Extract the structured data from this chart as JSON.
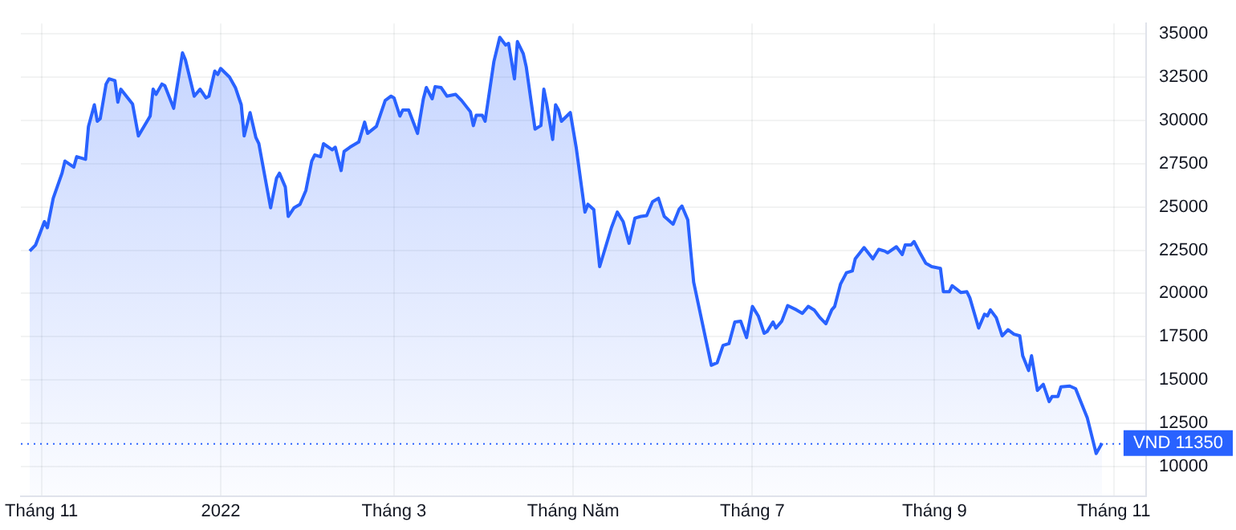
{
  "chart_data": {
    "type": "area",
    "color": "#2962ff",
    "grid": true,
    "legend": false,
    "marker": "none",
    "line_style": "solid",
    "xlim": [
      "2021-10-25",
      "2022-11-12"
    ],
    "xticks": [
      {
        "value": "2021-11-01",
        "label": "Tháng 11"
      },
      {
        "value": "2022-01-01",
        "label": "2022"
      },
      {
        "value": "2022-03-01",
        "label": "Tháng 3"
      },
      {
        "value": "2022-05-01",
        "label": "Tháng Năm"
      },
      {
        "value": "2022-07-01",
        "label": "Tháng 7"
      },
      {
        "value": "2022-09-01",
        "label": "Tháng 9"
      },
      {
        "value": "2022-11-01",
        "label": "Tháng 11"
      }
    ],
    "ylim": [
      8300,
      35600
    ],
    "yticks": [
      10000,
      12500,
      15000,
      17500,
      20000,
      22500,
      25000,
      27500,
      30000,
      32500,
      35000
    ],
    "ref_lines": [
      {
        "axis": "y",
        "value": 11350,
        "label": "VND 11350",
        "color": "#2962ff",
        "line_style": "dotted"
      }
    ],
    "x": [
      "2021-10-28",
      "2021-10-30",
      "2021-11-02",
      "2021-11-03",
      "2021-11-05",
      "2021-11-08",
      "2021-11-09",
      "2021-11-12",
      "2021-11-13",
      "2021-11-16",
      "2021-11-17",
      "2021-11-19",
      "2021-11-20",
      "2021-11-21",
      "2021-11-23",
      "2021-11-24",
      "2021-11-26",
      "2021-11-27",
      "2021-11-28",
      "2021-12-02",
      "2021-12-04",
      "2021-12-08",
      "2021-12-09",
      "2021-12-10",
      "2021-12-12",
      "2021-12-13",
      "2021-12-16",
      "2021-12-17",
      "2021-12-19",
      "2021-12-20",
      "2021-12-23",
      "2021-12-25",
      "2021-12-27",
      "2021-12-28",
      "2021-12-30",
      "2021-12-31",
      "2022-01-01",
      "2022-01-04",
      "2022-01-06",
      "2022-01-08",
      "2022-01-09",
      "2022-01-11",
      "2022-01-13",
      "2022-01-14",
      "2022-01-18",
      "2022-01-20",
      "2022-01-21",
      "2022-01-23",
      "2022-01-24",
      "2022-01-26",
      "2022-01-28",
      "2022-01-30",
      "2022-02-01",
      "2022-02-02",
      "2022-02-04",
      "2022-02-05",
      "2022-02-08",
      "2022-02-09",
      "2022-02-11",
      "2022-02-12",
      "2022-02-14",
      "2022-02-17",
      "2022-02-19",
      "2022-02-20",
      "2022-02-23",
      "2022-02-26",
      "2022-02-28",
      "2022-03-01",
      "2022-03-03",
      "2022-03-04",
      "2022-03-06",
      "2022-03-09",
      "2022-03-11",
      "2022-03-12",
      "2022-03-14",
      "2022-03-15",
      "2022-03-17",
      "2022-03-19",
      "2022-03-22",
      "2022-03-24",
      "2022-03-27",
      "2022-03-28",
      "2022-03-29",
      "2022-03-31",
      "2022-04-01",
      "2022-04-04",
      "2022-04-06",
      "2022-04-08",
      "2022-04-09",
      "2022-04-11",
      "2022-04-12",
      "2022-04-14",
      "2022-04-15",
      "2022-04-18",
      "2022-04-20",
      "2022-04-21",
      "2022-04-22",
      "2022-04-24",
      "2022-04-25",
      "2022-04-26",
      "2022-04-27",
      "2022-04-30",
      "2022-05-02",
      "2022-05-05",
      "2022-05-06",
      "2022-05-08",
      "2022-05-10",
      "2022-05-14",
      "2022-05-16",
      "2022-05-18",
      "2022-05-20",
      "2022-05-22",
      "2022-05-24",
      "2022-05-26",
      "2022-05-28",
      "2022-05-30",
      "2022-06-01",
      "2022-06-04",
      "2022-06-06",
      "2022-06-07",
      "2022-06-09",
      "2022-06-11",
      "2022-06-17",
      "2022-06-19",
      "2022-06-21",
      "2022-06-23",
      "2022-06-25",
      "2022-06-27",
      "2022-06-29",
      "2022-07-01",
      "2022-07-03",
      "2022-07-05",
      "2022-07-06",
      "2022-07-08",
      "2022-07-09",
      "2022-07-11",
      "2022-07-13",
      "2022-07-16",
      "2022-07-18",
      "2022-07-20",
      "2022-07-22",
      "2022-07-24",
      "2022-07-26",
      "2022-07-28",
      "2022-07-29",
      "2022-07-31",
      "2022-08-02",
      "2022-08-04",
      "2022-08-05",
      "2022-08-08",
      "2022-08-11",
      "2022-08-13",
      "2022-08-15",
      "2022-08-16",
      "2022-08-19",
      "2022-08-21",
      "2022-08-22",
      "2022-08-24",
      "2022-08-25",
      "2022-08-27",
      "2022-08-29",
      "2022-08-31",
      "2022-09-03",
      "2022-09-04",
      "2022-09-06",
      "2022-09-07",
      "2022-09-10",
      "2022-09-12",
      "2022-09-13",
      "2022-09-16",
      "2022-09-18",
      "2022-09-19",
      "2022-09-20",
      "2022-09-22",
      "2022-09-24",
      "2022-09-26",
      "2022-09-28",
      "2022-09-30",
      "2022-10-01",
      "2022-10-03",
      "2022-10-04",
      "2022-10-06",
      "2022-10-08",
      "2022-10-10",
      "2022-10-11",
      "2022-10-13",
      "2022-10-14",
      "2022-10-17",
      "2022-10-19",
      "2022-10-23",
      "2022-10-26",
      "2022-10-28"
    ],
    "values": [
      22450,
      22800,
      24150,
      23800,
      25500,
      26950,
      27650,
      27300,
      27900,
      27750,
      29650,
      30900,
      29950,
      30100,
      32100,
      32400,
      32300,
      31050,
      31800,
      30950,
      29100,
      30250,
      31800,
      31500,
      32100,
      32000,
      30700,
      31800,
      33900,
      33500,
      31400,
      31800,
      31300,
      31400,
      32850,
      32650,
      33000,
      32500,
      31900,
      30900,
      29100,
      30450,
      29000,
      28650,
      24950,
      26650,
      26950,
      26150,
      24450,
      24950,
      25150,
      25950,
      27650,
      28000,
      27900,
      28650,
      28300,
      28450,
      27100,
      28200,
      28450,
      28750,
      29900,
      29250,
      29650,
      31150,
      31400,
      31300,
      30250,
      30600,
      30600,
      29250,
      31250,
      31900,
      31250,
      31950,
      31900,
      31400,
      31500,
      31150,
      30500,
      29700,
      30300,
      30300,
      29950,
      33400,
      34800,
      34350,
      34450,
      32400,
      34550,
      33850,
      33100,
      29500,
      29700,
      31800,
      30950,
      28900,
      30900,
      30600,
      29950,
      30450,
      28450,
      24700,
      25150,
      24850,
      21550,
      23800,
      24700,
      24150,
      22900,
      24350,
      24450,
      24500,
      25300,
      25500,
      24450,
      24000,
      24850,
      25050,
      24250,
      20650,
      15850,
      16000,
      17000,
      17100,
      18350,
      18400,
      17450,
      19250,
      18700,
      17700,
      17800,
      18350,
      18000,
      18400,
      19300,
      19050,
      18850,
      19250,
      19050,
      18600,
      18250,
      19050,
      19250,
      20550,
      21200,
      21300,
      22000,
      22650,
      22000,
      22550,
      22450,
      22350,
      22700,
      22250,
      22800,
      22800,
      23000,
      22350,
      21750,
      21550,
      21450,
      20100,
      20100,
      20450,
      20050,
      20100,
      19750,
      18000,
      18800,
      18700,
      19050,
      18600,
      17550,
      17900,
      17650,
      17550,
      16400,
      15550,
      16400,
      14400,
      14750,
      13750,
      14050,
      14050,
      14600,
      14650,
      14500,
      12800,
      10750,
      11350
    ]
  }
}
